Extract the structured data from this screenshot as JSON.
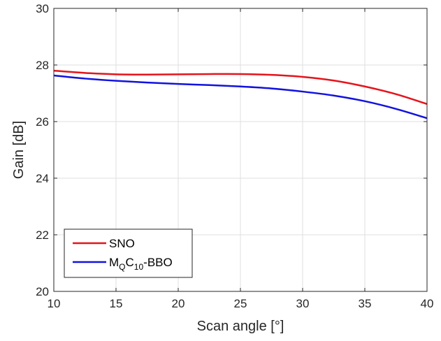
{
  "chart_data": {
    "type": "line",
    "title": "",
    "xlabel": "Scan angle [°]",
    "ylabel": "Gain [dB]",
    "xlim": [
      10,
      40
    ],
    "ylim": [
      20,
      30
    ],
    "xticks": [
      "10",
      "15",
      "20",
      "25",
      "30",
      "35",
      "40"
    ],
    "yticks": [
      "20",
      "22",
      "24",
      "26",
      "28",
      "30"
    ],
    "grid": true,
    "legend_position": "bottom-left",
    "series": [
      {
        "name": "SNO",
        "label_parts": [
          {
            "text": "SNO",
            "sub": ""
          }
        ],
        "color": "#e5141b",
        "x": [
          10,
          12.5,
          15,
          17.5,
          20,
          22.5,
          25,
          27.5,
          30,
          32.5,
          35,
          37.5,
          40
        ],
        "y": [
          27.8,
          27.72,
          27.67,
          27.66,
          27.67,
          27.68,
          27.68,
          27.65,
          27.58,
          27.45,
          27.24,
          26.97,
          26.62
        ]
      },
      {
        "name": "MQC10-BBO",
        "label_parts": [
          {
            "text": "M",
            "sub": "Q"
          },
          {
            "text": "C",
            "sub": "10"
          },
          {
            "text": "-BBO",
            "sub": ""
          }
        ],
        "color": "#1212e0",
        "x": [
          10,
          12.5,
          15,
          17.5,
          20,
          22.5,
          25,
          27.5,
          30,
          32.5,
          35,
          37.5,
          40
        ],
        "y": [
          27.63,
          27.52,
          27.44,
          27.38,
          27.33,
          27.29,
          27.24,
          27.17,
          27.06,
          26.92,
          26.72,
          26.45,
          26.12
        ]
      }
    ]
  }
}
